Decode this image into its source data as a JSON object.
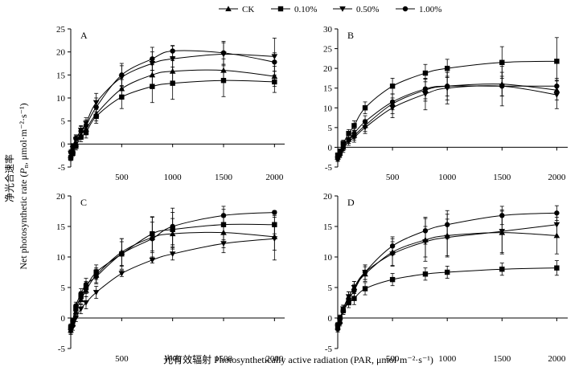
{
  "legend": [
    {
      "label": "CK",
      "marker": "triangle-up"
    },
    {
      "label": "0.10%",
      "marker": "square"
    },
    {
      "label": "0.50%",
      "marker": "triangle-down"
    },
    {
      "label": "1.00%",
      "marker": "circle"
    }
  ],
  "ylabel": "净光合速率",
  "ylabel2_pre": "Net photosynthetic rate (",
  "ylabel2_sym": "P",
  "ylabel2_sub": "n",
  "ylabel2_post": ", μmol·m⁻²·s⁻¹)",
  "xlabel": "光有效辐射 Photosynthetically active radiation (PAR, μmol·m⁻²·s⁻¹)",
  "chart_data": [
    {
      "type": "line",
      "panel": "A",
      "x": [
        0,
        20,
        50,
        100,
        150,
        250,
        500,
        800,
        1000,
        1500,
        2000
      ],
      "xticks": [
        500,
        1000,
        1500,
        2000
      ],
      "ylim": [
        -5,
        25
      ],
      "yticks": [
        -5,
        0,
        5,
        10,
        15,
        20,
        25
      ],
      "series": [
        {
          "name": "CK",
          "values": [
            -2.5,
            -1.5,
            0,
            2,
            3.2,
            6.5,
            12,
            15,
            15.8,
            16,
            14.7
          ],
          "err": [
            0.6,
            0.6,
            0.8,
            1,
            1.2,
            1.5,
            2,
            2.2,
            2.3,
            2.5,
            2.2
          ]
        },
        {
          "name": "0.10%",
          "values": [
            -3,
            -2,
            -0.5,
            1.5,
            2.5,
            6,
            10.2,
            12.5,
            13.2,
            13.8,
            13.5
          ],
          "err": [
            0.6,
            0.6,
            0.8,
            1,
            1.2,
            1.5,
            2.5,
            3.5,
            3.5,
            3.5,
            2.3
          ]
        },
        {
          "name": "0.50%",
          "values": [
            -2,
            -1,
            1,
            3,
            4.5,
            9,
            14.5,
            17.5,
            18.5,
            19.5,
            19
          ],
          "err": [
            0.6,
            0.6,
            0.8,
            1,
            1.2,
            2,
            2.5,
            2.5,
            2.8,
            2.5,
            4
          ]
        },
        {
          "name": "1.00%",
          "values": [
            -1.8,
            -0.5,
            1.2,
            2.8,
            4,
            8,
            15,
            18.5,
            20.2,
            19.8,
            17.8
          ],
          "err": [
            0.6,
            0.6,
            0.8,
            1,
            1.2,
            2,
            2.5,
            2.5,
            1.2,
            2.5,
            2
          ]
        }
      ]
    },
    {
      "type": "line",
      "panel": "B",
      "x": [
        0,
        20,
        50,
        100,
        150,
        250,
        500,
        800,
        1000,
        1500,
        2000
      ],
      "xticks": [
        500,
        1000,
        1500,
        2000
      ],
      "ylim": [
        -5,
        30
      ],
      "yticks": [
        -5,
        0,
        5,
        10,
        15,
        20,
        25,
        30
      ],
      "series": [
        {
          "name": "CK",
          "values": [
            -2.5,
            -1.5,
            0,
            2,
            3,
            5.5,
            11,
            14.5,
            15.5,
            16,
            14.5
          ],
          "err": [
            0.6,
            0.6,
            0.8,
            1,
            1.2,
            1.5,
            2.5,
            2.8,
            3.5,
            3,
            2.5
          ]
        },
        {
          "name": "0.10%",
          "values": [
            -2,
            -1,
            1,
            3.5,
            5.5,
            10,
            15.5,
            18.8,
            20,
            21.5,
            21.8
          ],
          "err": [
            0.6,
            0.6,
            0.8,
            1,
            1.2,
            1.5,
            2,
            2.2,
            2.3,
            4,
            6
          ]
        },
        {
          "name": "0.50%",
          "values": [
            -3,
            -2,
            -0.5,
            1.5,
            2.5,
            5,
            10,
            13.5,
            15,
            15.5,
            13.3
          ],
          "err": [
            0.6,
            0.6,
            0.8,
            1,
            1.2,
            1.5,
            2.5,
            4,
            4,
            5,
            3.5
          ]
        },
        {
          "name": "1.00%",
          "values": [
            -2.8,
            -1.8,
            0,
            2,
            3.5,
            6.5,
            11.5,
            14.8,
            15.5,
            15.5,
            15.5
          ],
          "err": [
            0.6,
            0.6,
            0.8,
            1,
            1.2,
            1.5,
            2,
            2.5,
            2.5,
            2.5,
            2
          ]
        }
      ]
    },
    {
      "type": "line",
      "panel": "C",
      "x": [
        0,
        20,
        50,
        100,
        150,
        250,
        500,
        800,
        1000,
        1500,
        2000
      ],
      "xticks": [
        500,
        1000,
        1500,
        2000
      ],
      "ylim": [
        -5,
        20
      ],
      "yticks": [
        -5,
        0,
        5,
        10,
        15,
        20
      ],
      "series": [
        {
          "name": "CK",
          "values": [
            -2,
            -1,
            1,
            3,
            4.5,
            7,
            10.8,
            13.2,
            13.8,
            14,
            13.3
          ],
          "err": [
            0.5,
            0.5,
            0.6,
            0.8,
            1,
            1.2,
            2.2,
            2.5,
            2.5,
            2.5,
            2.2
          ]
        },
        {
          "name": "0.10%",
          "values": [
            -1.5,
            -0.5,
            1.5,
            3.5,
            5,
            7.5,
            10.5,
            13.8,
            14.5,
            15.3,
            15.3
          ],
          "err": [
            0.5,
            0.5,
            0.6,
            0.8,
            1,
            1.2,
            2,
            2.8,
            2.8,
            2.5,
            1.5
          ]
        },
        {
          "name": "0.50%",
          "values": [
            -2.2,
            -1.5,
            0,
            1.5,
            2.5,
            4.2,
            7.3,
            9.5,
            10.5,
            12.2,
            13
          ],
          "err": [
            0.5,
            0.5,
            0.6,
            0.8,
            1,
            1,
            0.5,
            0.5,
            1,
            1.5,
            3.5
          ]
        },
        {
          "name": "1.00%",
          "values": [
            -1.5,
            -0.5,
            2,
            4,
            5.5,
            6.8,
            10.5,
            13,
            15,
            16.8,
            17.3
          ],
          "err": [
            0.5,
            0.5,
            0.6,
            0.8,
            1,
            1.2,
            2.5,
            3.5,
            3,
            1.5,
            0.3
          ]
        }
      ]
    },
    {
      "type": "line",
      "panel": "D",
      "x": [
        0,
        20,
        50,
        100,
        150,
        250,
        500,
        800,
        1000,
        1500,
        2000
      ],
      "xticks": [
        500,
        1000,
        1500,
        2000
      ],
      "ylim": [
        -5,
        20
      ],
      "yticks": [
        -5,
        0,
        5,
        10,
        15,
        20
      ],
      "series": [
        {
          "name": "CK",
          "values": [
            -1.5,
            -0.5,
            1.5,
            3.5,
            5,
            7.2,
            10.8,
            12.8,
            13.5,
            14,
            13.5
          ],
          "err": [
            0.5,
            0.5,
            0.6,
            0.8,
            1,
            1.2,
            2.2,
            3.5,
            3.5,
            3.5,
            3
          ]
        },
        {
          "name": "0.10%",
          "values": [
            -1.2,
            0,
            1.2,
            2.5,
            3.2,
            4.8,
            6.3,
            7.2,
            7.5,
            8,
            8.2
          ],
          "err": [
            0.5,
            0.5,
            0.6,
            0.8,
            1,
            1,
            1,
            1,
            1,
            1,
            1.2
          ]
        },
        {
          "name": "0.50%",
          "values": [
            -1.5,
            -0.5,
            1.5,
            3.5,
            5,
            7.5,
            10.5,
            12.5,
            13.2,
            14.2,
            15.3
          ],
          "err": [
            0.5,
            0.5,
            0.6,
            0.8,
            1,
            1.2,
            2,
            2.5,
            3,
            3.5,
            2
          ]
        },
        {
          "name": "1.00%",
          "values": [
            -1.8,
            -0.8,
            1.2,
            3,
            4.5,
            7.5,
            11.8,
            14.3,
            15.3,
            16.8,
            17.2
          ],
          "err": [
            0.5,
            0.5,
            0.6,
            0.8,
            1,
            1.2,
            1.5,
            2.2,
            2.3,
            1.5,
            1.2
          ]
        }
      ]
    }
  ]
}
